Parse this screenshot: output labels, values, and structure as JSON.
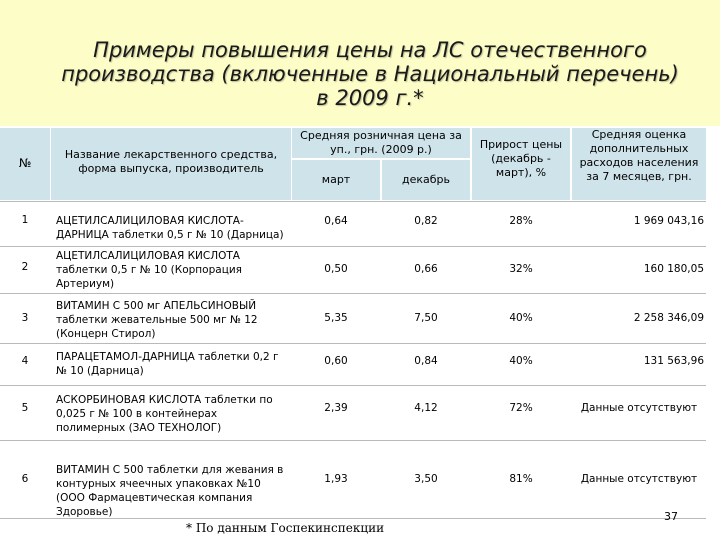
{
  "title": "Примеры повышения цены на ЛС отечественного производства (включенные в Национальный перечень) в 2009 г.*",
  "title_lines": [
    "Примеры повышения цены на ЛС отечественного",
    "производства (включенные в Национальный перечень)",
    "в 2009 г.*"
  ],
  "headers": {
    "num": "№",
    "name": "Название лекарственного средства, форма выпуска, производитель",
    "avg_price": "Средняя розничная цена за уп., грн. (2009 р.)",
    "march": "март",
    "december": "декабрь",
    "growth": "Прирост цены (декабрь - март), %",
    "extra_cost": "Средняя оценка дополнительных расходов населения за 7 месяцев, грн."
  },
  "rows": [
    {
      "num": "1",
      "name": "АЦЕТИЛСАЛИЦИЛОВАЯ КИСЛОТА-ДАРНИЦА таблетки 0,5 г № 10 (Дарница)",
      "march": "0,64",
      "december": "0,82",
      "growth": "28%",
      "extra": "1 969 043,16"
    },
    {
      "num": "2",
      "name": "АЦЕТИЛСАЛИЦИЛОВАЯ КИСЛОТА таблетки 0,5 г № 10 (Корпорация Артериум)",
      "march": "0,50",
      "december": "0,66",
      "growth": "32%",
      "extra": "160 180,05"
    },
    {
      "num": "3",
      "name": "ВИТАМИН С 500 мг АПЕЛЬСИНОВЫЙ таблетки жевательные 500 мг № 12 (Концерн Стирол)",
      "march": "5,35",
      "december": "7,50",
      "growth": "40%",
      "extra": "2 258 346,09"
    },
    {
      "num": "4",
      "name": "ПАРАЦЕТАМОЛ-ДАРНИЦА таблетки 0,2 г № 10 (Дарница)",
      "march": "0,60",
      "december": "0,84",
      "growth": "40%",
      "extra": "131 563,96"
    },
    {
      "num": "5",
      "name": "АСКОРБИНОВАЯ КИСЛОТА таблетки по 0,025 г № 100 в контейнерах полимерных (ЗАО ТЕХНОЛОГ)",
      "march": "2,39",
      "december": "4,12",
      "growth": "72%",
      "extra": "Данные отсутствуют"
    },
    {
      "num": "6",
      "name": "ВИТАМИН С 500 таблетки для жевания в контурных ячеечных упаковках №10 (ООО Фармацевтическая компания Здоровье)",
      "march": "1,93",
      "december": "3,50",
      "growth": "81%",
      "extra": "Данные отсутствуют"
    }
  ],
  "footnote": "* По данным Госпекинспекции",
  "page_number": "37",
  "colors": {
    "title_band": "#fdfdc8",
    "header_fill": "#cfe3ea"
  }
}
